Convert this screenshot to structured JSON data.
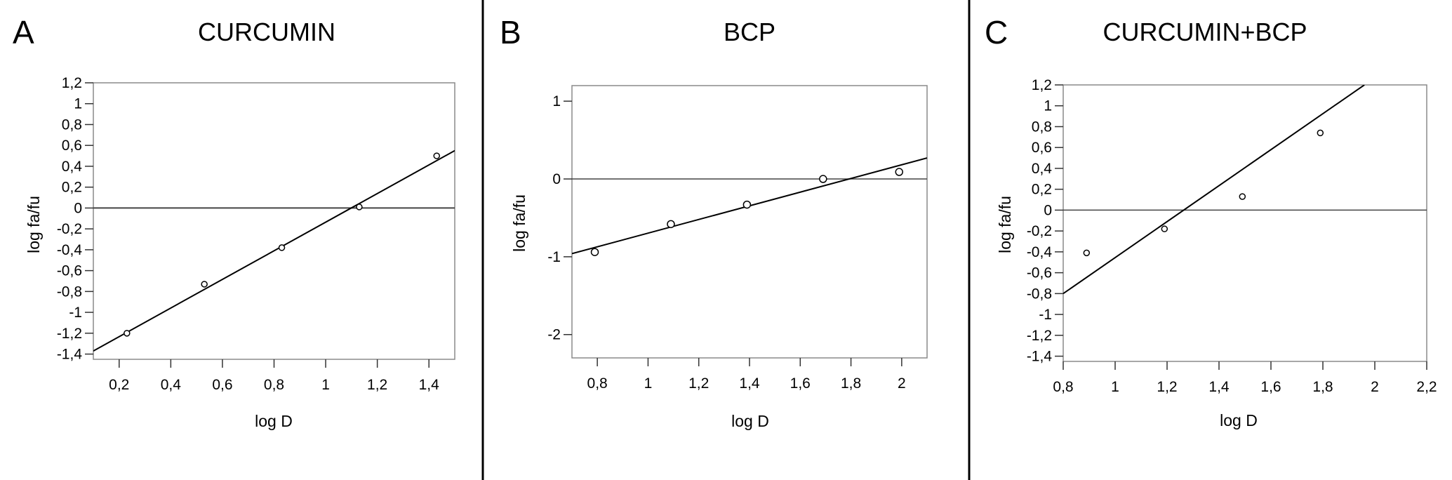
{
  "chart_data": [
    {
      "type": "scatter",
      "panel": "A",
      "title": "CURCUMIN",
      "xlabel": "log D",
      "ylabel": "log fa/fu",
      "xlim": [
        0.1,
        1.5
      ],
      "ylim": [
        -1.45,
        1.2
      ],
      "xticks": [
        0.2,
        0.4,
        0.6,
        0.8,
        1,
        1.2,
        1.4
      ],
      "xtick_labels": [
        "0,2",
        "0,4",
        "0,6",
        "0,8",
        "1",
        "1,2",
        "1,4"
      ],
      "yticks": [
        1.2,
        1,
        0.8,
        0.6,
        0.4,
        0.2,
        0,
        -0.2,
        -0.4,
        -0.6,
        -0.8,
        -1,
        -1.2,
        -1.4
      ],
      "ytick_labels": [
        "1,2",
        "1",
        "0,8",
        "0,6",
        "0,4",
        "0,2",
        "0",
        "-0,2",
        "-0,4",
        "-0,6",
        "-0,8",
        "-1",
        "-1,2",
        "-1,4"
      ],
      "points": [
        [
          0.23,
          -1.2
        ],
        [
          0.53,
          -0.73
        ],
        [
          0.83,
          -0.38
        ],
        [
          1.13,
          0.01
        ],
        [
          1.43,
          0.5
        ]
      ],
      "fit_line": [
        [
          0.1,
          -1.37
        ],
        [
          1.5,
          0.55
        ]
      ],
      "zero_line": true,
      "grid": false
    },
    {
      "type": "scatter",
      "panel": "B",
      "title": "BCP",
      "xlabel": "log D",
      "ylabel": "log fa/fu",
      "xlim": [
        0.7,
        2.1
      ],
      "ylim": [
        -2.3,
        1.2
      ],
      "xticks": [
        0.8,
        1,
        1.2,
        1.4,
        1.6,
        1.8,
        2
      ],
      "xtick_labels": [
        "0,8",
        "1",
        "1,2",
        "1,4",
        "1,6",
        "1,8",
        "2"
      ],
      "yticks": [
        1,
        0,
        -1,
        -2
      ],
      "ytick_labels": [
        "1",
        "0",
        "-1",
        "-2"
      ],
      "points": [
        [
          0.79,
          -0.94
        ],
        [
          1.09,
          -0.58
        ],
        [
          1.39,
          -0.33
        ],
        [
          1.69,
          0.0
        ],
        [
          1.99,
          0.09
        ]
      ],
      "fit_line": [
        [
          0.7,
          -0.96
        ],
        [
          2.1,
          0.27
        ]
      ],
      "zero_line": true,
      "grid": false
    },
    {
      "type": "scatter",
      "panel": "C",
      "title": "CURCUMIN+BCP",
      "xlabel": "log D",
      "ylabel": "log fa/fu",
      "xlim": [
        0.8,
        2.2
      ],
      "ylim": [
        -1.45,
        1.2
      ],
      "xticks": [
        0.8,
        1,
        1.2,
        1.4,
        1.6,
        1.8,
        2,
        2.2
      ],
      "xtick_labels": [
        "0,8",
        "1",
        "1,2",
        "1,4",
        "1,6",
        "1,8",
        "2",
        "2,2"
      ],
      "yticks": [
        1.2,
        1,
        0.8,
        0.6,
        0.4,
        0.2,
        0,
        -0.2,
        -0.4,
        -0.6,
        -0.8,
        -1,
        -1.2,
        -1.4
      ],
      "ytick_labels": [
        "1,2",
        "1",
        "0,8",
        "0,6",
        "0,4",
        "0,2",
        "0",
        "-0,2",
        "-0,4",
        "-0,6",
        "-0,8",
        "-1",
        "-1,2",
        "-1,4"
      ],
      "points": [
        [
          0.89,
          -0.41
        ],
        [
          1.19,
          -0.18
        ],
        [
          1.49,
          0.13
        ],
        [
          1.79,
          0.74
        ]
      ],
      "fit_line": [
        [
          0.8,
          -0.8
        ],
        [
          1.96,
          1.2
        ]
      ],
      "zero_line": true,
      "grid": false
    }
  ]
}
